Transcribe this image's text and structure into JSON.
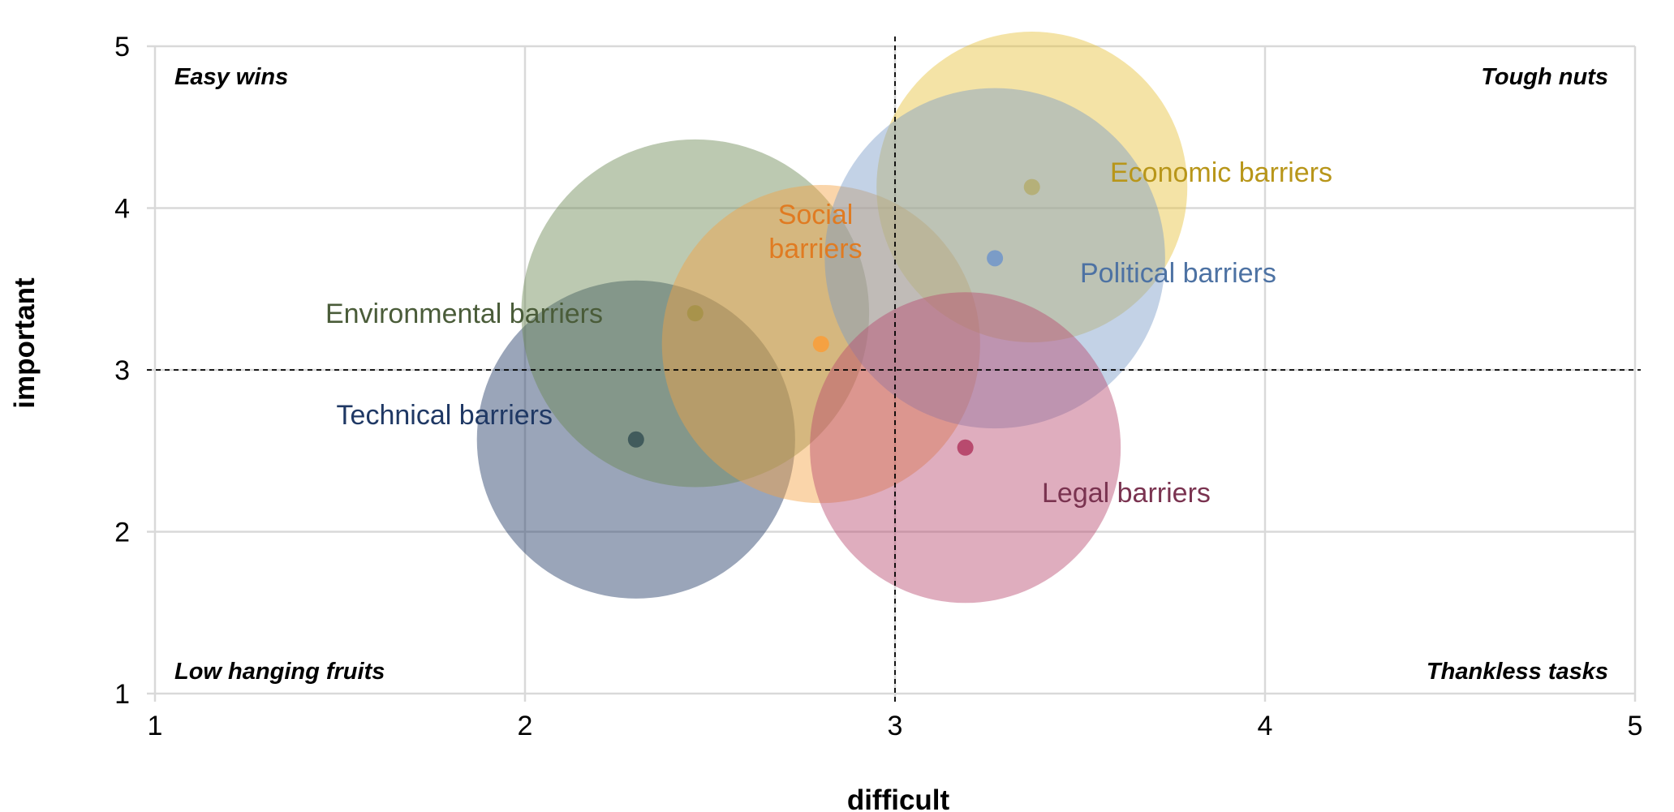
{
  "chart_data": {
    "type": "bubble",
    "xlabel": "difficult",
    "ylabel": "important",
    "xlim": [
      1,
      5
    ],
    "ylim": [
      1,
      5
    ],
    "x_ticks": [
      1,
      2,
      3,
      4,
      5
    ],
    "y_ticks": [
      1,
      2,
      3,
      4,
      5
    ],
    "grid": true,
    "reference_lines": {
      "x": 3,
      "y": 3
    },
    "quadrants": {
      "top_left": "Easy wins",
      "top_right": "Tough nuts",
      "bottom_left": "Low hanging fruits",
      "bottom_right": "Thankless tasks"
    },
    "series": [
      {
        "name": "Technical barriers",
        "x": 2.3,
        "y": 2.57,
        "bubble_radius": 0.43,
        "color": "#1f3864",
        "label_color": "#1f3864"
      },
      {
        "name": "Environmental barriers",
        "x": 2.46,
        "y": 3.35,
        "bubble_radius": 0.47,
        "color": "#6b8753",
        "label_color": "#4a5c39"
      },
      {
        "name": "Social barriers",
        "x": 2.8,
        "y": 3.16,
        "bubble_radius": 0.43,
        "color": "#f5a142",
        "label_color": "#e07b22"
      },
      {
        "name": "Economic barriers",
        "x": 3.37,
        "y": 4.13,
        "bubble_radius": 0.42,
        "color": "#e6c13a",
        "label_color": "#b8961a"
      },
      {
        "name": "Political barriers",
        "x": 3.27,
        "y": 3.69,
        "bubble_radius": 0.46,
        "color": "#7b9cc7",
        "label_color": "#4d72a3"
      },
      {
        "name": "Legal barriers",
        "x": 3.19,
        "y": 2.52,
        "bubble_radius": 0.42,
        "color": "#b84a6e",
        "label_color": "#7a3350"
      }
    ]
  }
}
